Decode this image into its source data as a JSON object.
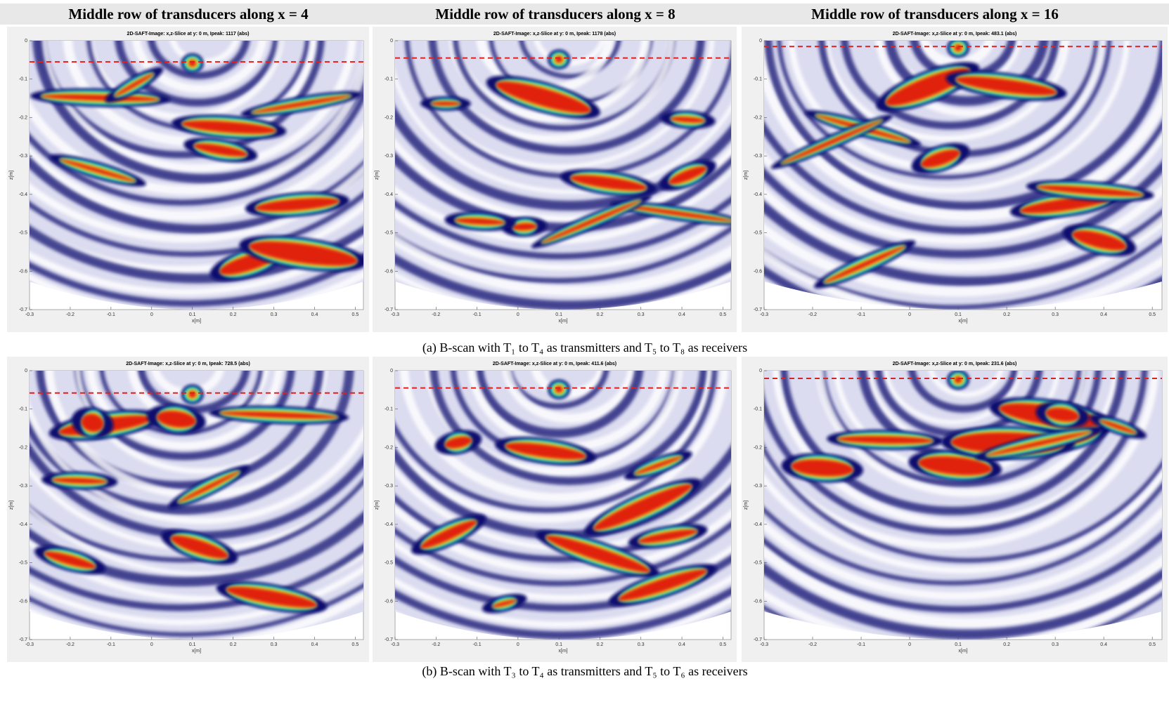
{
  "headers": [
    "Middle row of transducers along x = 4",
    "Middle row of transducers along x = 8",
    "Middle row of transducers along x = 16"
  ],
  "captions": [
    "(a) B-scan with T₁ to T₄ as transmitters and T₅ to T₈ as receivers",
    "(b) B-scan with T₃ to T₄ as transmitters and T₅ to T₆ as receivers"
  ],
  "panels": [
    {
      "title": "2D-SAFT-Image: x,z-Slice at y: 0 m, Ipeak: 1117 (abs)",
      "xlabel": "x[m]",
      "ylabel": "z[m]",
      "xlim": [
        -0.3,
        0.52
      ],
      "ylim": [
        -0.7,
        0
      ],
      "xticks": [
        -0.3,
        -0.2,
        -0.1,
        0,
        0.1,
        0.2,
        0.3,
        0.4,
        0.5
      ],
      "yticks": [
        0,
        -0.1,
        -0.2,
        -0.3,
        -0.4,
        -0.5,
        -0.6,
        -0.7
      ],
      "line_z": -0.055,
      "line_color": "#e0201c"
    },
    {
      "title": "2D-SAFT-Image: x,z-Slice at y: 0 m, Ipeak: 1178 (abs)",
      "xlabel": "x[m]",
      "ylabel": "z[m]",
      "xlim": [
        -0.3,
        0.52
      ],
      "ylim": [
        -0.7,
        0
      ],
      "xticks": [
        -0.3,
        -0.2,
        -0.1,
        0,
        0.1,
        0.2,
        0.3,
        0.4,
        0.5
      ],
      "yticks": [
        0,
        -0.1,
        -0.2,
        -0.3,
        -0.4,
        -0.5,
        -0.6,
        -0.7
      ],
      "line_z": -0.045,
      "line_color": "#e0201c"
    },
    {
      "title": "2D-SAFT-Image: x,z-Slice at y: 0 m, Ipeak: 483.1 (abs)",
      "xlabel": "x[m]",
      "ylabel": "z[m]",
      "xlim": [
        -0.3,
        0.52
      ],
      "ylim": [
        -0.7,
        0
      ],
      "xticks": [
        -0.3,
        -0.2,
        -0.1,
        0,
        0.1,
        0.2,
        0.3,
        0.4,
        0.5
      ],
      "yticks": [
        0,
        -0.1,
        -0.2,
        -0.3,
        -0.4,
        -0.5,
        -0.6,
        -0.7
      ],
      "line_z": -0.015,
      "line_color": "#e0201c"
    },
    {
      "title": "2D-SAFT-Image: x,z-Slice at y: 0 m, Ipeak: 728.5 (abs)",
      "xlabel": "x[m]",
      "ylabel": "z[m]",
      "xlim": [
        -0.3,
        0.52
      ],
      "ylim": [
        -0.7,
        0
      ],
      "xticks": [
        -0.3,
        -0.2,
        -0.1,
        0,
        0.1,
        0.2,
        0.3,
        0.4,
        0.5
      ],
      "yticks": [
        0,
        -0.1,
        -0.2,
        -0.3,
        -0.4,
        -0.5,
        -0.6,
        -0.7
      ],
      "line_z": -0.058,
      "line_color": "#e0201c"
    },
    {
      "title": "2D-SAFT-Image: x,z-Slice at y: 0 m, Ipeak: 411.6 (abs)",
      "xlabel": "x[m]",
      "ylabel": "z[m]",
      "xlim": [
        -0.3,
        0.52
      ],
      "ylim": [
        -0.7,
        0
      ],
      "xticks": [
        -0.3,
        -0.2,
        -0.1,
        0,
        0.1,
        0.2,
        0.3,
        0.4,
        0.5
      ],
      "yticks": [
        0,
        -0.1,
        -0.2,
        -0.3,
        -0.4,
        -0.5,
        -0.6,
        -0.7
      ],
      "line_z": -0.045,
      "line_color": "#e0201c"
    },
    {
      "title": "2D-SAFT-Image: x,z-Slice at y: 0 m, Ipeak: 231.6 (abs)",
      "xlabel": "x[m]",
      "ylabel": "z[m]",
      "xlim": [
        -0.3,
        0.52
      ],
      "ylim": [
        -0.7,
        0
      ],
      "xticks": [
        -0.3,
        -0.2,
        -0.1,
        0,
        0.1,
        0.2,
        0.3,
        0.4,
        0.5
      ],
      "yticks": [
        0,
        -0.1,
        -0.2,
        -0.3,
        -0.4,
        -0.5,
        -0.6,
        -0.7
      ],
      "line_z": -0.02,
      "line_color": "#e0201c"
    }
  ]
}
